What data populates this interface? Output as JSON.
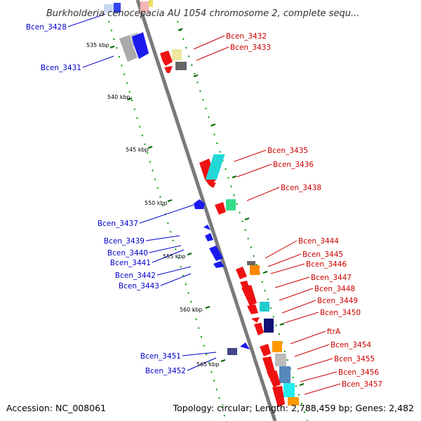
{
  "title": "Burkholderia cenocepacia AU 1054 chromosome 2, complete sequ...",
  "footer": {
    "accession": "Accession: NC_008061",
    "topology": "Topology: circular; Length: 2,788,459 bp; Genes: 2,482"
  },
  "colors": {
    "backbone": "#808080",
    "minus_label": "#0000cc",
    "plus_label": "#cc0000",
    "scale_dash": "#006600"
  },
  "scale_ticks": [
    "535 kbp",
    "540 kbp",
    "545 kbp",
    "550 kbp",
    "555 kbp",
    "560 kbp",
    "565 kbp"
  ],
  "genes_minus_strand": [
    "Bcen_3428",
    "Bcen_3431",
    "Bcen_3437",
    "Bcen_3439",
    "Bcen_3440",
    "Bcen_3441",
    "Bcen_3442",
    "Bcen_3443",
    "Bcen_3451",
    "Bcen_3452"
  ],
  "genes_plus_strand": [
    "Bcen_3432",
    "Bcen_3433",
    "Bcen_3435",
    "Bcen_3436",
    "Bcen_3438",
    "Bcen_3444",
    "Bcen_3445",
    "Bcen_3446",
    "Bcen_3447",
    "Bcen_3448",
    "Bcen_3449",
    "Bcen_3450",
    "ftrA",
    "Bcen_3454",
    "Bcen_3455",
    "Bcen_3456",
    "Bcen_3457"
  ]
}
